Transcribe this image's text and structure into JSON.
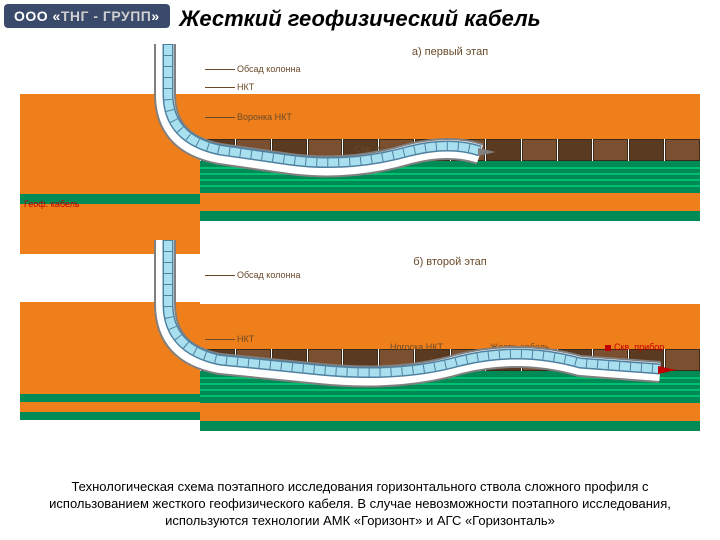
{
  "logo": {
    "prefix": "ООО «",
    "mid": "ТНГ - ГРУПП",
    "suffix": "»"
  },
  "title": "Жесткий геофизический кабель",
  "panels": {
    "a": {
      "title": "а) первый этап"
    },
    "b": {
      "title": "б) второй этап"
    }
  },
  "labels": {
    "obsad_kolonna": "Обсад колонна",
    "nkt": "НКТ",
    "voronka_nkt": "Воронка НКТ",
    "geof_kabel": "Геоф. кабель",
    "skv_pribor": "Скв. прибор",
    "nogoska_nkt": "Ногоска НКТ",
    "zhestk_kabel": "Жестк. кабель"
  },
  "colors": {
    "orange": "#ef7f1a",
    "green": "#008a55",
    "brown_dark": "#5a3a20",
    "brown_light": "#7a5030",
    "casing_outer": "#808080",
    "casing_inner": "#b0b0b0",
    "cable_fill": "#a8e0f0",
    "cable_stroke": "#5080a0",
    "red": "#c00000",
    "text_brown": "#6a4a2a"
  },
  "caption": "Технологическая схема поэтапного исследования горизонтального ствола сложного профиля с использованием жесткого геофизического кабеля. В случае невозможности поэтапного исследования, используются технологии АМК «Горизонт» и АГС «Горизонталь»",
  "layers": {
    "stripe_heights": [
      2,
      2,
      2,
      2,
      2
    ],
    "brick_count": 14
  }
}
